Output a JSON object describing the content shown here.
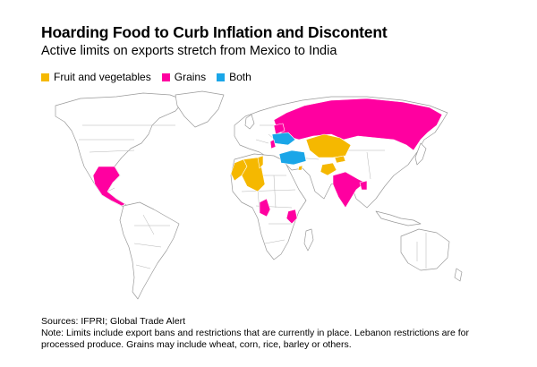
{
  "title": "Hoarding Food to Curb Inflation and Discontent",
  "subtitle": "Active limits on exports stretch from Mexico to India",
  "legend": [
    {
      "label": "Fruit and vegetables",
      "color": "#f5b800"
    },
    {
      "label": "Grains",
      "color": "#ff00a0"
    },
    {
      "label": "Both",
      "color": "#1aa6e8"
    }
  ],
  "map": {
    "countries": {
      "mexico": "Grains",
      "morocco": "Fruit and vegetables",
      "algeria": "Fruit and vegetables",
      "tunisia": "Fruit and vegetables",
      "cameroon": "Grains",
      "kenya": "Grains",
      "russia": "Grains",
      "ukraine": "Both",
      "belarus": "Grains",
      "moldova": "Grains",
      "turkey": "Both",
      "kazakhstan": "Fruit and vegetables",
      "kyrgyzstan": "Fruit and vegetables",
      "afghanistan": "Fruit and vegetables",
      "lebanon": "Fruit and vegetables",
      "india": "Grains",
      "bangladesh": "Grains"
    }
  },
  "footer": {
    "sources": "Sources: IFPRI; Global Trade Alert",
    "note": "Note: Limits include export bans and restrictions that are currently in place. Lebanon restrictions are for processed produce. Grains may include wheat, corn, rice, barley or others."
  }
}
